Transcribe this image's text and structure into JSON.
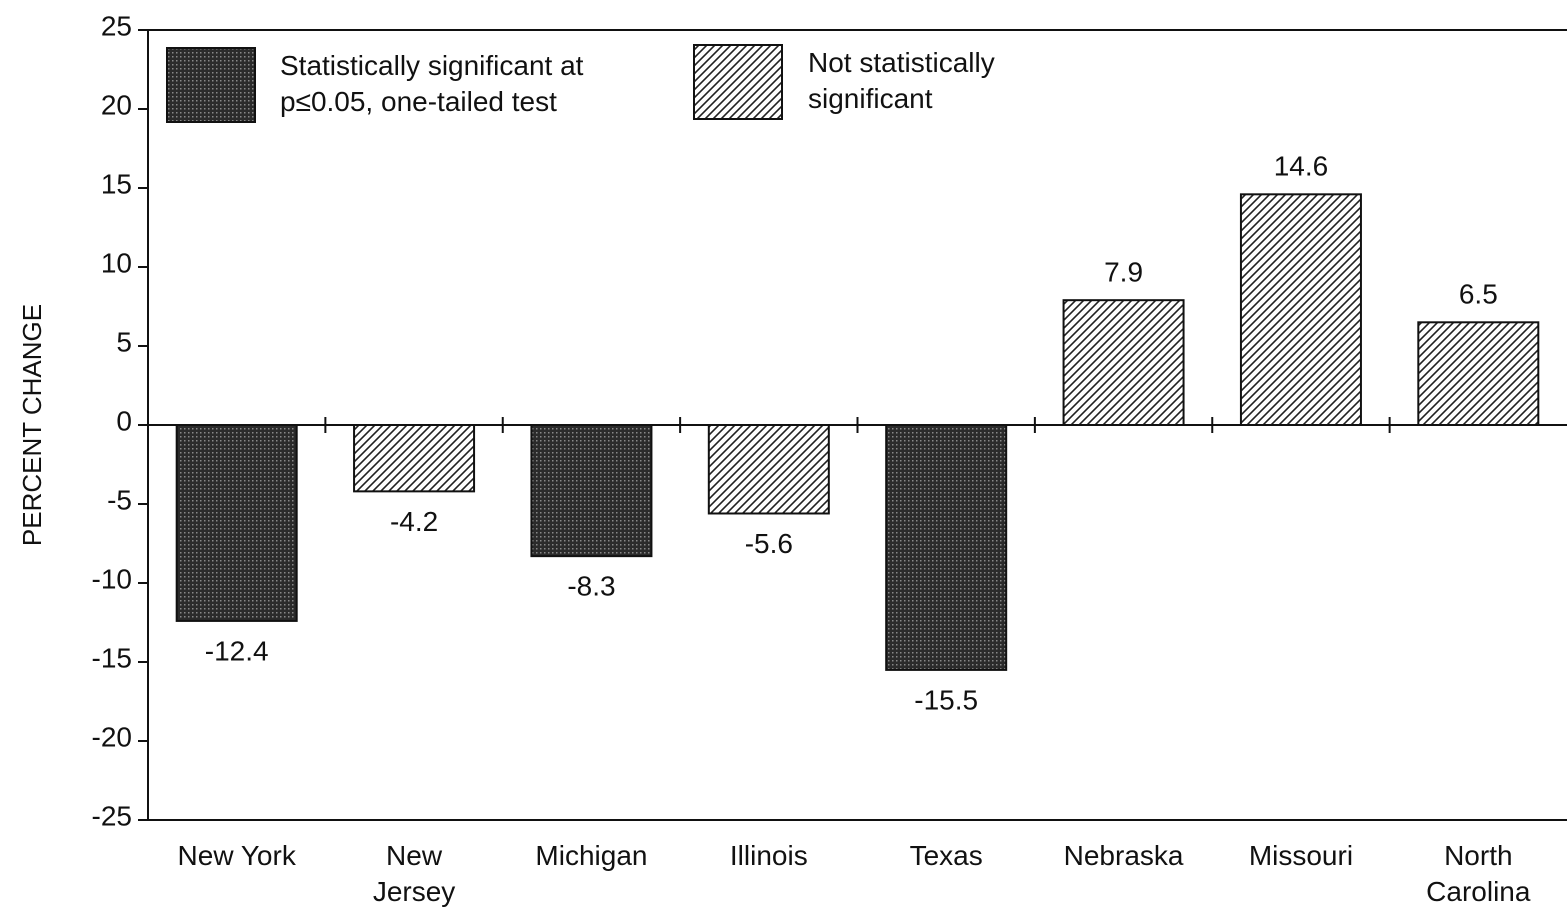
{
  "chart_data": {
    "type": "bar",
    "y_label": "PERCENT CHANGE",
    "categories": [
      "New York",
      "New\nJersey",
      "Michigan",
      "Illinois",
      "Texas",
      "Nebraska",
      "Missouri",
      "North\nCarolina"
    ],
    "series": [
      {
        "name": "Statistically significant at\n p≤0.05, one-tailed test",
        "color": "#2b2b2b",
        "pattern": "dots",
        "values": [
          -12.4,
          null,
          -8.3,
          null,
          -15.5,
          null,
          null,
          null
        ]
      },
      {
        "name": "Not statistically\nsignificant",
        "color": "#222222",
        "pattern": "hatch",
        "values": [
          null,
          -4.2,
          null,
          -5.6,
          null,
          7.9,
          14.6,
          6.5
        ]
      }
    ],
    "ylim": [
      -25,
      25
    ],
    "yticks": [
      -25,
      -20,
      -15,
      -10,
      -5,
      0,
      5,
      10,
      15,
      20,
      25
    ]
  }
}
